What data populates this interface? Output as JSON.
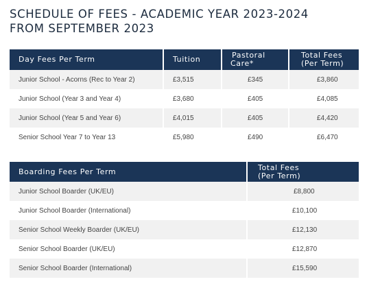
{
  "title": {
    "line1": "SCHEDULE OF FEES - ACADEMIC YEAR 2023-2024",
    "line2": "FROM SEPTEMBER 2023"
  },
  "day_fees": {
    "headers": [
      "Day Fees Per Term",
      "Tuition",
      "Pastoral Care*",
      "Total Fees (Per Term)"
    ],
    "header_lines": {
      "pastoral": [
        "Pastoral",
        "Care*"
      ],
      "total": [
        "Total Fees",
        "(Per Term)"
      ]
    },
    "rows": [
      {
        "label": "Junior School - Acorns (Rec to Year 2)",
        "tuition": "£3,515",
        "pastoral": "£345",
        "total": "£3,860"
      },
      {
        "label": "Junior School (Year 3 and Year 4)",
        "tuition": "£3,680",
        "pastoral": "£405",
        "total": "£4,085"
      },
      {
        "label": "Junior School (Year 5 and Year 6)",
        "tuition": "£4,015",
        "pastoral": "£405",
        "total": "£4,420"
      },
      {
        "label": "Senior School Year 7 to Year 13",
        "tuition": "£5,980",
        "pastoral": "£490",
        "total": "£6,470"
      }
    ]
  },
  "boarding_fees": {
    "headers": [
      "Boarding Fees Per Term",
      "Total Fees (Per Term)"
    ],
    "header_lines": {
      "total": [
        "Total Fees",
        "(Per Term)"
      ]
    },
    "rows": [
      {
        "label": "Junior School Boarder (UK/EU)",
        "total": "£8,800"
      },
      {
        "label": "Junior School Boarder (International)",
        "total": "£10,100"
      },
      {
        "label": "Senior School Weekly Boarder (UK/EU)",
        "total": "£12,130"
      },
      {
        "label": "Senior School Boarder (UK/EU)",
        "total": "£12,870"
      },
      {
        "label": "Senior School Boarder (International)",
        "total": "£15,590"
      }
    ]
  },
  "colors": {
    "header_bg": "#1b3557",
    "title_text": "#1c2b3e",
    "row_alt_bg": "#f1f1f1",
    "cell_text": "#444444"
  }
}
